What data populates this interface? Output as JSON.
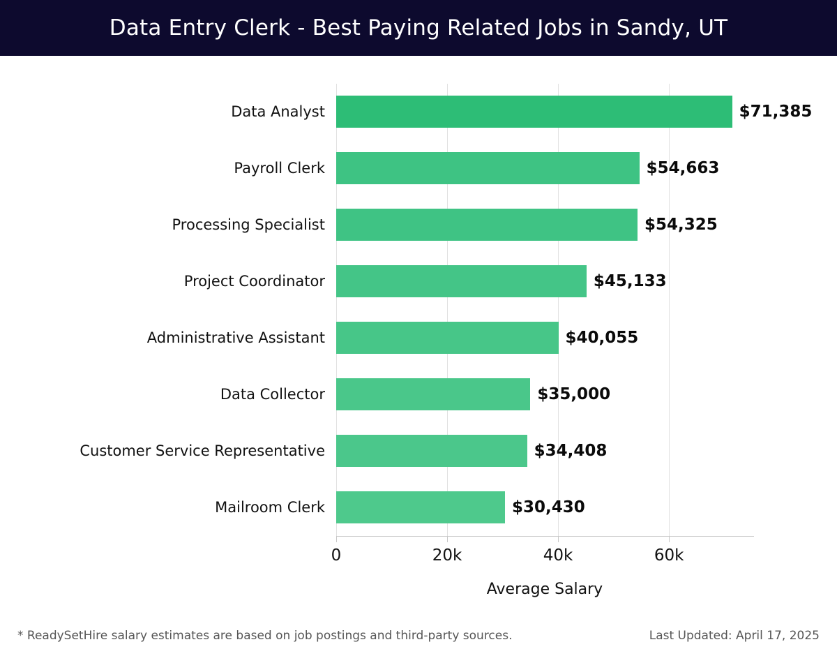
{
  "header": {
    "title": "Data Entry Clerk - Best Paying Related Jobs in Sandy, UT",
    "background_color": "#0d0a2e",
    "text_color": "#ffffff"
  },
  "chart_data": {
    "type": "bar",
    "orientation": "horizontal",
    "title": "Data Entry Clerk - Best Paying Related Jobs in Sandy, UT",
    "categories": [
      "Data Analyst",
      "Payroll Clerk",
      "Processing Specialist",
      "Project Coordinator",
      "Administrative Assistant",
      "Data Collector",
      "Customer Service Representative",
      "Mailroom Clerk"
    ],
    "values": [
      71385,
      54663,
      54325,
      45133,
      40055,
      35000,
      34408,
      30430
    ],
    "value_labels": [
      "$71,385",
      "$54,663",
      "$54,325",
      "$45,133",
      "$40,055",
      "$35,000",
      "$34,408",
      "$30,430"
    ],
    "bar_colors": [
      "#2dbd76",
      "#3ec383",
      "#3fc384",
      "#44c587",
      "#47c688",
      "#4ac78a",
      "#4bc78b",
      "#4ec98c"
    ],
    "xlabel": "Average Salary",
    "ylabel": "",
    "x_ticks": [
      {
        "value": 0,
        "label": "0"
      },
      {
        "value": 20000,
        "label": "20k"
      },
      {
        "value": 40000,
        "label": "40k"
      },
      {
        "value": 60000,
        "label": "60k"
      }
    ],
    "xlim": [
      0,
      75200
    ],
    "grid": "vertical",
    "gridline_color": "#e1e1e1",
    "axis_line_color": "#c8c8c8",
    "legend": "none"
  },
  "footer": {
    "note": "* ReadySetHire salary estimates are based on job postings and third-party sources.",
    "last_updated": "Last Updated: April 17, 2025"
  }
}
